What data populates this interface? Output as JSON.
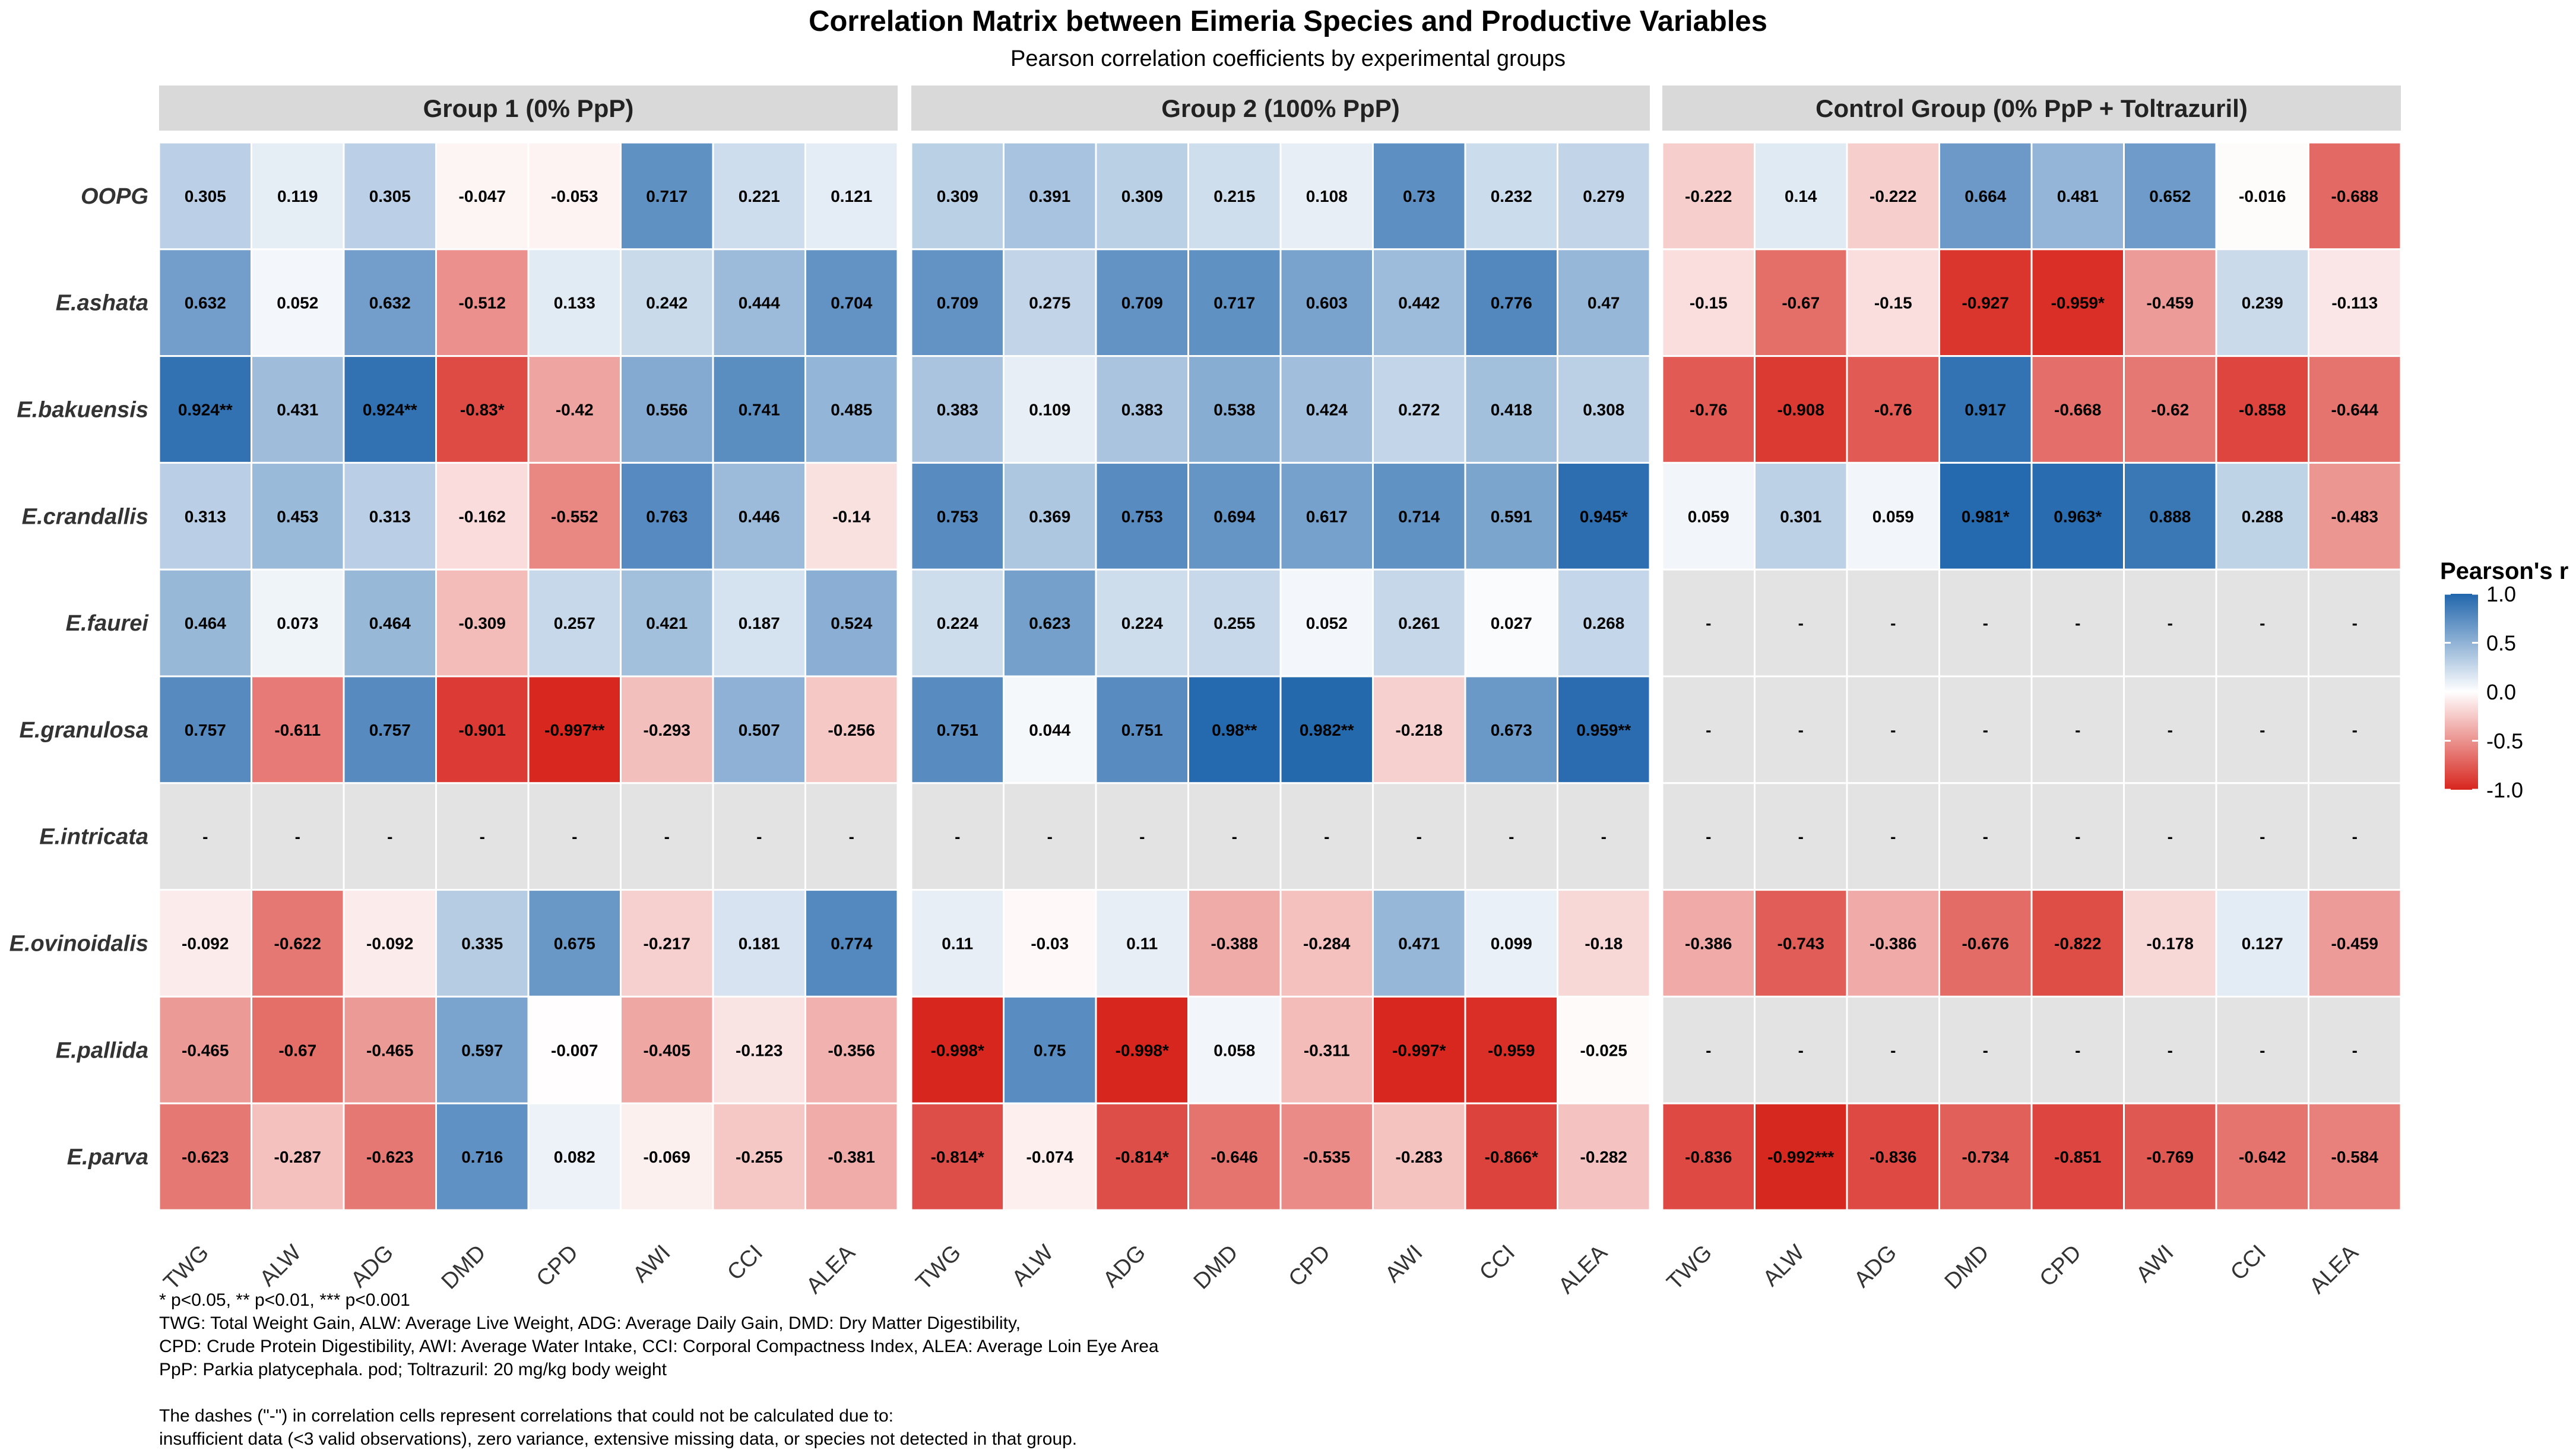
{
  "chart_data": {
    "type": "heatmap",
    "title": "Correlation Matrix between Eimeria Species and Productive Variables",
    "subtitle": "Pearson correlation coefficients by experimental groups",
    "rows": [
      "OOPG",
      "E.ashata",
      "E.bakuensis",
      "E.crandallis",
      "E.faurei",
      "E.granulosa",
      "E.intricata",
      "E.ovinoidalis",
      "E.pallida",
      "E.parva"
    ],
    "columns": [
      "TWG",
      "ALW",
      "ADG",
      "DMD",
      "CPD",
      "AWI",
      "CCI",
      "ALEA"
    ],
    "panels": [
      {
        "name": "Group 1 (0% PpP)",
        "values": [
          [
            0.305,
            0.119,
            0.305,
            -0.047,
            -0.053,
            0.717,
            0.221,
            0.121
          ],
          [
            0.632,
            0.052,
            0.632,
            -0.512,
            0.133,
            0.242,
            0.444,
            0.704
          ],
          [
            0.924,
            0.431,
            0.924,
            -0.83,
            -0.42,
            0.556,
            0.741,
            0.485
          ],
          [
            0.313,
            0.453,
            0.313,
            -0.162,
            -0.552,
            0.763,
            0.446,
            -0.14
          ],
          [
            0.464,
            0.073,
            0.464,
            -0.309,
            0.257,
            0.421,
            0.187,
            0.524
          ],
          [
            0.757,
            -0.611,
            0.757,
            -0.901,
            -0.997,
            -0.293,
            0.507,
            -0.256
          ],
          [
            null,
            null,
            null,
            null,
            null,
            null,
            null,
            null
          ],
          [
            -0.092,
            -0.622,
            -0.092,
            0.335,
            0.675,
            -0.217,
            0.181,
            0.774
          ],
          [
            -0.465,
            -0.67,
            -0.465,
            0.597,
            -0.007,
            -0.405,
            -0.123,
            -0.356
          ],
          [
            -0.623,
            -0.287,
            -0.623,
            0.716,
            0.082,
            -0.069,
            -0.255,
            -0.381
          ]
        ],
        "labels": [
          [
            "0.305",
            "0.119",
            "0.305",
            "-0.047",
            "-0.053",
            "0.717",
            "0.221",
            "0.121"
          ],
          [
            "0.632",
            "0.052",
            "0.632",
            "-0.512",
            "0.133",
            "0.242",
            "0.444",
            "0.704"
          ],
          [
            "0.924**",
            "0.431",
            "0.924**",
            "-0.83*",
            "-0.42",
            "0.556",
            "0.741",
            "0.485"
          ],
          [
            "0.313",
            "0.453",
            "0.313",
            "-0.162",
            "-0.552",
            "0.763",
            "0.446",
            "-0.14"
          ],
          [
            "0.464",
            "0.073",
            "0.464",
            "-0.309",
            "0.257",
            "0.421",
            "0.187",
            "0.524"
          ],
          [
            "0.757",
            "-0.611",
            "0.757",
            "-0.901",
            "-0.997**",
            "-0.293",
            "0.507",
            "-0.256"
          ],
          [
            "-",
            "-",
            "-",
            "-",
            "-",
            "-",
            "-",
            "-"
          ],
          [
            "-0.092",
            "-0.622",
            "-0.092",
            "0.335",
            "0.675",
            "-0.217",
            "0.181",
            "0.774"
          ],
          [
            "-0.465",
            "-0.67",
            "-0.465",
            "0.597",
            "-0.007",
            "-0.405",
            "-0.123",
            "-0.356"
          ],
          [
            "-0.623",
            "-0.287",
            "-0.623",
            "0.716",
            "0.082",
            "-0.069",
            "-0.255",
            "-0.381"
          ]
        ]
      },
      {
        "name": "Group 2 (100% PpP)",
        "values": [
          [
            0.309,
            0.391,
            0.309,
            0.215,
            0.108,
            0.73,
            0.232,
            0.279
          ],
          [
            0.709,
            0.275,
            0.709,
            0.717,
            0.603,
            0.442,
            0.776,
            0.47
          ],
          [
            0.383,
            0.109,
            0.383,
            0.538,
            0.424,
            0.272,
            0.418,
            0.308
          ],
          [
            0.753,
            0.369,
            0.753,
            0.694,
            0.617,
            0.714,
            0.591,
            0.945
          ],
          [
            0.224,
            0.623,
            0.224,
            0.255,
            0.052,
            0.261,
            0.027,
            0.268
          ],
          [
            0.751,
            0.044,
            0.751,
            0.98,
            0.982,
            -0.218,
            0.673,
            0.959
          ],
          [
            null,
            null,
            null,
            null,
            null,
            null,
            null,
            null
          ],
          [
            0.11,
            -0.03,
            0.11,
            -0.388,
            -0.284,
            0.471,
            0.099,
            -0.18
          ],
          [
            -0.998,
            0.75,
            -0.998,
            0.058,
            -0.311,
            -0.997,
            -0.959,
            -0.025
          ],
          [
            -0.814,
            -0.074,
            -0.814,
            -0.646,
            -0.535,
            -0.283,
            -0.866,
            -0.282
          ]
        ],
        "labels": [
          [
            "0.309",
            "0.391",
            "0.309",
            "0.215",
            "0.108",
            "0.73",
            "0.232",
            "0.279"
          ],
          [
            "0.709",
            "0.275",
            "0.709",
            "0.717",
            "0.603",
            "0.442",
            "0.776",
            "0.47"
          ],
          [
            "0.383",
            "0.109",
            "0.383",
            "0.538",
            "0.424",
            "0.272",
            "0.418",
            "0.308"
          ],
          [
            "0.753",
            "0.369",
            "0.753",
            "0.694",
            "0.617",
            "0.714",
            "0.591",
            "0.945*"
          ],
          [
            "0.224",
            "0.623",
            "0.224",
            "0.255",
            "0.052",
            "0.261",
            "0.027",
            "0.268"
          ],
          [
            "0.751",
            "0.044",
            "0.751",
            "0.98**",
            "0.982**",
            "-0.218",
            "0.673",
            "0.959**"
          ],
          [
            "-",
            "-",
            "-",
            "-",
            "-",
            "-",
            "-",
            "-"
          ],
          [
            "0.11",
            "-0.03",
            "0.11",
            "-0.388",
            "-0.284",
            "0.471",
            "0.099",
            "-0.18"
          ],
          [
            "-0.998*",
            "0.75",
            "-0.998*",
            "0.058",
            "-0.311",
            "-0.997*",
            "-0.959",
            "-0.025"
          ],
          [
            "-0.814*",
            "-0.074",
            "-0.814*",
            "-0.646",
            "-0.535",
            "-0.283",
            "-0.866*",
            "-0.282"
          ]
        ]
      },
      {
        "name": "Control Group (0% PpP + Toltrazuril)",
        "values": [
          [
            -0.222,
            0.14,
            -0.222,
            0.664,
            0.481,
            0.652,
            -0.016,
            -0.688
          ],
          [
            -0.15,
            -0.67,
            -0.15,
            -0.927,
            -0.959,
            -0.459,
            0.239,
            -0.113
          ],
          [
            -0.76,
            -0.908,
            -0.76,
            0.917,
            -0.668,
            -0.62,
            -0.858,
            -0.644
          ],
          [
            0.059,
            0.301,
            0.059,
            0.981,
            0.963,
            0.888,
            0.288,
            -0.483
          ],
          [
            null,
            null,
            null,
            null,
            null,
            null,
            null,
            null
          ],
          [
            null,
            null,
            null,
            null,
            null,
            null,
            null,
            null
          ],
          [
            null,
            null,
            null,
            null,
            null,
            null,
            null,
            null
          ],
          [
            -0.386,
            -0.743,
            -0.386,
            -0.676,
            -0.822,
            -0.178,
            0.127,
            -0.459
          ],
          [
            null,
            null,
            null,
            null,
            null,
            null,
            null,
            null
          ],
          [
            -0.836,
            -0.992,
            -0.836,
            -0.734,
            -0.851,
            -0.769,
            -0.642,
            -0.584
          ]
        ],
        "labels": [
          [
            "-0.222",
            "0.14",
            "-0.222",
            "0.664",
            "0.481",
            "0.652",
            "-0.016",
            "-0.688"
          ],
          [
            "-0.15",
            "-0.67",
            "-0.15",
            "-0.927",
            "-0.959*",
            "-0.459",
            "0.239",
            "-0.113"
          ],
          [
            "-0.76",
            "-0.908",
            "-0.76",
            "0.917",
            "-0.668",
            "-0.62",
            "-0.858",
            "-0.644"
          ],
          [
            "0.059",
            "0.301",
            "0.059",
            "0.981*",
            "0.963*",
            "0.888",
            "0.288",
            "-0.483"
          ],
          [
            "-",
            "-",
            "-",
            "-",
            "-",
            "-",
            "-",
            "-"
          ],
          [
            "-",
            "-",
            "-",
            "-",
            "-",
            "-",
            "-",
            "-"
          ],
          [
            "-",
            "-",
            "-",
            "-",
            "-",
            "-",
            "-",
            "-"
          ],
          [
            "-0.386",
            "-0.743",
            "-0.386",
            "-0.676",
            "-0.822",
            "-0.178",
            "0.127",
            "-0.459"
          ],
          [
            "-",
            "-",
            "-",
            "-",
            "-",
            "-",
            "-",
            "-"
          ],
          [
            "-0.836",
            "-0.992***",
            "-0.836",
            "-0.734",
            "-0.851",
            "-0.769",
            "-0.642",
            "-0.584"
          ]
        ]
      }
    ],
    "legend": {
      "title": "Pearson's r",
      "ticks": [
        1.0,
        0.5,
        0.0,
        -0.5,
        -1.0
      ],
      "tick_labels": [
        "1.0",
        "0.5",
        "0.0",
        "-0.5",
        "-1.0"
      ],
      "placement": "right"
    },
    "color_scale": {
      "low": "#d7261e",
      "mid": "#ffffff",
      "high": "#2166ac",
      "na": "#e3e3e3",
      "range": [
        -1,
        1
      ]
    }
  },
  "footnotes": [
    "* p<0.05, ** p<0.01, *** p<0.001",
    "TWG: Total Weight Gain, ALW: Average Live Weight, ADG: Average Daily Gain, DMD: Dry Matter Digestibility,",
    "CPD: Crude Protein Digestibility, AWI: Average Water Intake, CCI: Corporal Compactness Index, ALEA: Average Loin Eye Area",
    "PpP: Parkia platycephala. pod; Toltrazuril: 20 mg/kg body weight",
    "",
    "The dashes (\"-\") in correlation cells represent correlations that could not be calculated due to:",
    "insufficient data (<3 valid observations), zero variance, extensive missing data, or species not detected in that group."
  ],
  "colors": {
    "strip_bg": "#d9d9d9",
    "grid_line": "#ffffff",
    "text": "#000000"
  }
}
